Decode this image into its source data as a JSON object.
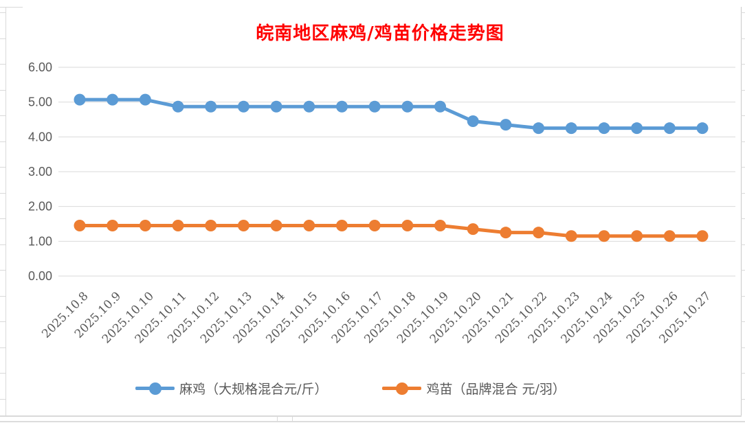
{
  "window": {
    "background": "#FFFFFF"
  },
  "chart_data": {
    "type": "line",
    "title": "皖南地区麻鸡/鸡苗价格走势图",
    "title_color": "#FF0000",
    "categories": [
      "2025.10.8",
      "2025.10.9",
      "2025.10.10",
      "2025.10.11",
      "2025.10.12",
      "2025.10.13",
      "2025.10.14",
      "2025.10.15",
      "2025.10.16",
      "2025.10.17",
      "2025.10.18",
      "2025.10.19",
      "2025.10.20",
      "2025.10.21",
      "2025.10.22",
      "2025.10.23",
      "2025.10.24",
      "2025.10.25",
      "2025.10.26",
      "2025.10.27"
    ],
    "series": [
      {
        "name": "麻鸡（大规格混合元/斤）",
        "color": "#5B9BD5",
        "values": [
          5.07,
          5.07,
          5.07,
          4.87,
          4.87,
          4.87,
          4.87,
          4.87,
          4.87,
          4.87,
          4.87,
          4.87,
          4.45,
          4.35,
          4.25,
          4.25,
          4.25,
          4.25,
          4.25,
          4.25
        ]
      },
      {
        "name": "鸡苗（品牌混合 元/羽）",
        "color": "#ED7D31",
        "values": [
          1.45,
          1.45,
          1.45,
          1.45,
          1.45,
          1.45,
          1.45,
          1.45,
          1.45,
          1.45,
          1.45,
          1.45,
          1.35,
          1.25,
          1.25,
          1.15,
          1.15,
          1.15,
          1.15,
          1.15
        ]
      }
    ],
    "y_axis": {
      "min": 0,
      "max": 6,
      "tick_labels_top_to_bottom": [
        "6.00",
        "5.00",
        "4.00",
        "3.00",
        "2.00",
        "1.00",
        "0.00"
      ]
    },
    "x_axis": {
      "label_rotation_deg": 45
    },
    "grid": true,
    "legend_position": "bottom",
    "axis_label_color": "#595959",
    "gridline_color": "#D9D9D9"
  }
}
